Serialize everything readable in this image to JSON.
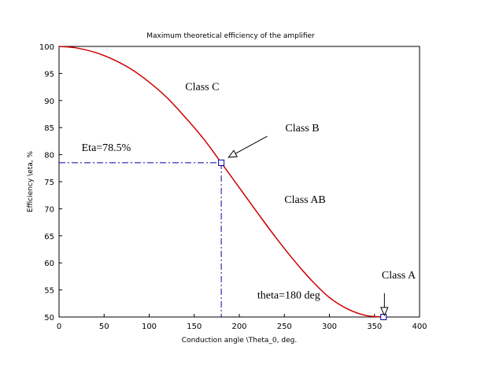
{
  "chart_data": {
    "type": "line",
    "title": "Maximum theoretical efficiency of the amplifier",
    "xlabel": "Conduction angle \\Theta_0, deg.",
    "ylabel": "Efficiency \\eta, %",
    "xlim": [
      0,
      400
    ],
    "ylim": [
      50,
      100
    ],
    "xticks": [
      0,
      50,
      100,
      150,
      200,
      250,
      300,
      350,
      400
    ],
    "yticks": [
      50,
      55,
      60,
      65,
      70,
      75,
      80,
      85,
      90,
      95,
      100
    ],
    "grid": false,
    "legend": "none",
    "series": [
      {
        "color": "#cc0000",
        "x": [
          0,
          20,
          40,
          60,
          80,
          100,
          120,
          140,
          160,
          180,
          200,
          220,
          240,
          260,
          280,
          300,
          320,
          340,
          360
        ],
        "y": [
          100,
          99.7,
          98.9,
          97.6,
          95.8,
          93.4,
          90.5,
          86.9,
          83.0,
          78.5,
          73.9,
          69.3,
          64.8,
          60.6,
          56.8,
          53.6,
          51.5,
          50.3,
          50.0
        ]
      }
    ],
    "markers": [
      {
        "x": 180,
        "y": 78.5
      },
      {
        "x": 360,
        "y": 50
      }
    ],
    "reference_lines": {
      "color": "#0000aa",
      "point": {
        "x": 180,
        "y": 78.5
      }
    },
    "annotations": [
      {
        "text": "Class C",
        "x": 140,
        "y": 91.9
      },
      {
        "text": "Class B",
        "x": 251,
        "y": 84.3
      },
      {
        "text": "Eta=78.5%",
        "x": 25,
        "y": 80.7
      },
      {
        "text": "Class AB",
        "x": 250,
        "y": 71.1
      },
      {
        "text": "Class A",
        "x": 358,
        "y": 57.1
      },
      {
        "text": "theta=180 deg",
        "x": 220,
        "y": 53.4
      }
    ],
    "arrows": [
      {
        "from": {
          "x": 231,
          "y": 83.4
        },
        "to": {
          "x": 188,
          "y": 79.5
        }
      },
      {
        "from": {
          "x": 361,
          "y": 54.4
        },
        "to": {
          "x": 361,
          "y": 50.3
        }
      }
    ]
  }
}
